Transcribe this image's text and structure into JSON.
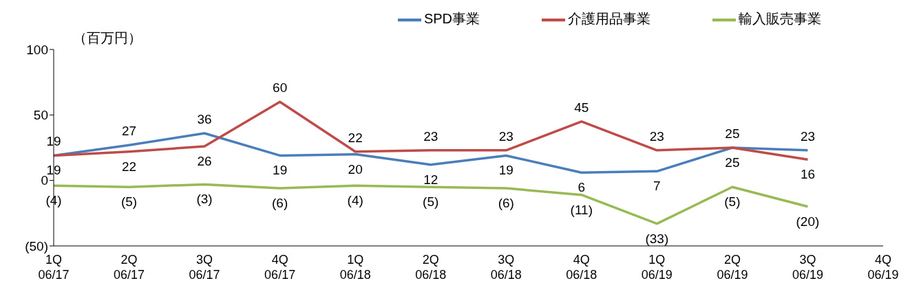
{
  "chart_data": {
    "type": "line",
    "categories": [
      "1Q 06/17",
      "2Q 06/17",
      "3Q 06/17",
      "4Q 06/17",
      "1Q 06/18",
      "2Q 06/18",
      "3Q 06/18",
      "4Q 06/18",
      "1Q 06/19",
      "2Q 06/19",
      "3Q 06/19",
      "4Q 06/19"
    ],
    "series": [
      {
        "name": "SPD事業",
        "color": "#4a7ebb",
        "values": [
          19,
          27,
          36,
          19,
          20,
          12,
          19,
          6,
          7,
          25,
          23,
          null
        ],
        "value_labels": [
          "19",
          "27",
          "36",
          "19",
          "20",
          "12",
          "19",
          "6",
          "7",
          "25",
          "23",
          null
        ]
      },
      {
        "name": "介護用品事業",
        "color": "#be4b48",
        "values": [
          19,
          22,
          26,
          60,
          22,
          23,
          23,
          45,
          23,
          25,
          16,
          null
        ],
        "value_labels": [
          "19",
          "22",
          "26",
          "60",
          "22",
          "23",
          "23",
          "45",
          "23",
          "25",
          "16",
          null
        ]
      },
      {
        "name": "輸入販売事業",
        "color": "#98b954",
        "values": [
          -4,
          -5,
          -3,
          -6,
          -4,
          -5,
          -6,
          -11,
          -33,
          -5,
          -20,
          null
        ],
        "value_labels": [
          "(4)",
          "(5)",
          "(3)",
          "(6)",
          "(4)",
          "(5)",
          "(6)",
          "(11)",
          "(33)",
          "(5)",
          "(20)",
          null
        ]
      }
    ],
    "ylim": [
      -50,
      100
    ],
    "yticks": [
      {
        "value": -50,
        "label": "(50)"
      },
      0,
      50,
      100
    ],
    "annotations": [
      "（百万円）"
    ],
    "legend": "top",
    "grid": false,
    "marker": "none",
    "line_style": "solid"
  }
}
